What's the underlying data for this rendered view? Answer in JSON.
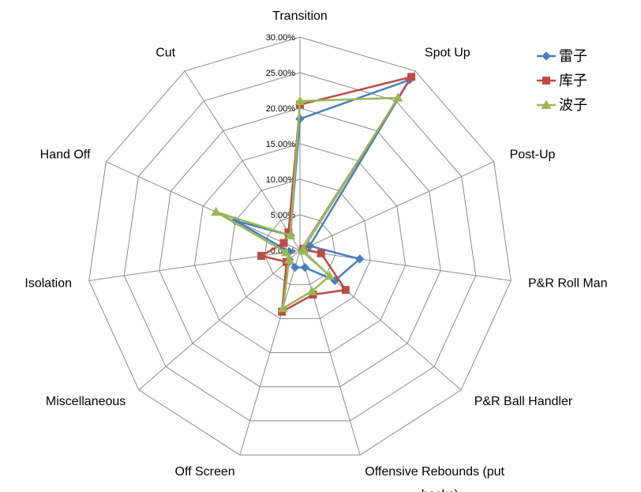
{
  "chart_data": {
    "type": "radar",
    "categories": [
      "Transition",
      "Spot Up",
      "Post-Up",
      "P&R Roll Man",
      "P&R Ball Handler",
      "Offensive Rebounds (put backs)",
      "Off Screen",
      "Miscellaneous",
      "Isolation",
      "Hand Off",
      "Cut"
    ],
    "category_lines": [
      [
        "Transition"
      ],
      [
        "Spot Up"
      ],
      [
        "Post-Up"
      ],
      [
        "P&R Roll Man"
      ],
      [
        "P&R Ball Handler"
      ],
      [
        "Offensive Rebounds (put",
        "backs)"
      ],
      [
        "Off Screen"
      ],
      [
        "Miscellaneous"
      ],
      [
        "Isolation"
      ],
      [
        "Hand Off"
      ],
      [
        "Cut"
      ]
    ],
    "rlim": [
      0,
      30
    ],
    "ticks": [
      0,
      5,
      10,
      15,
      20,
      25,
      30
    ],
    "tick_labels": [
      "0.00%",
      "5.00%",
      "10.00%",
      "15.00%",
      "20.00%",
      "25.00%",
      "30.00%"
    ],
    "series": [
      {
        "name": "雷子",
        "color": "#4a7ebb",
        "marker": "diamond",
        "values": [
          18.5,
          28.5,
          1.5,
          8.5,
          6.5,
          2.5,
          2.5,
          2.0,
          1.5,
          10.0,
          2.5
        ]
      },
      {
        "name": "库子",
        "color": "#be4b48",
        "marker": "square",
        "values": [
          20.5,
          29.0,
          0.5,
          3.0,
          8.5,
          6.5,
          9.0,
          2.5,
          5.5,
          2.5,
          3.0
        ]
      },
      {
        "name": "波子",
        "color": "#98b954",
        "marker": "triangle",
        "values": [
          21.0,
          25.5,
          0.5,
          0.5,
          5.5,
          6.0,
          8.5,
          2.0,
          2.0,
          13.0,
          2.5
        ]
      }
    ],
    "legend_position": "top-right"
  }
}
